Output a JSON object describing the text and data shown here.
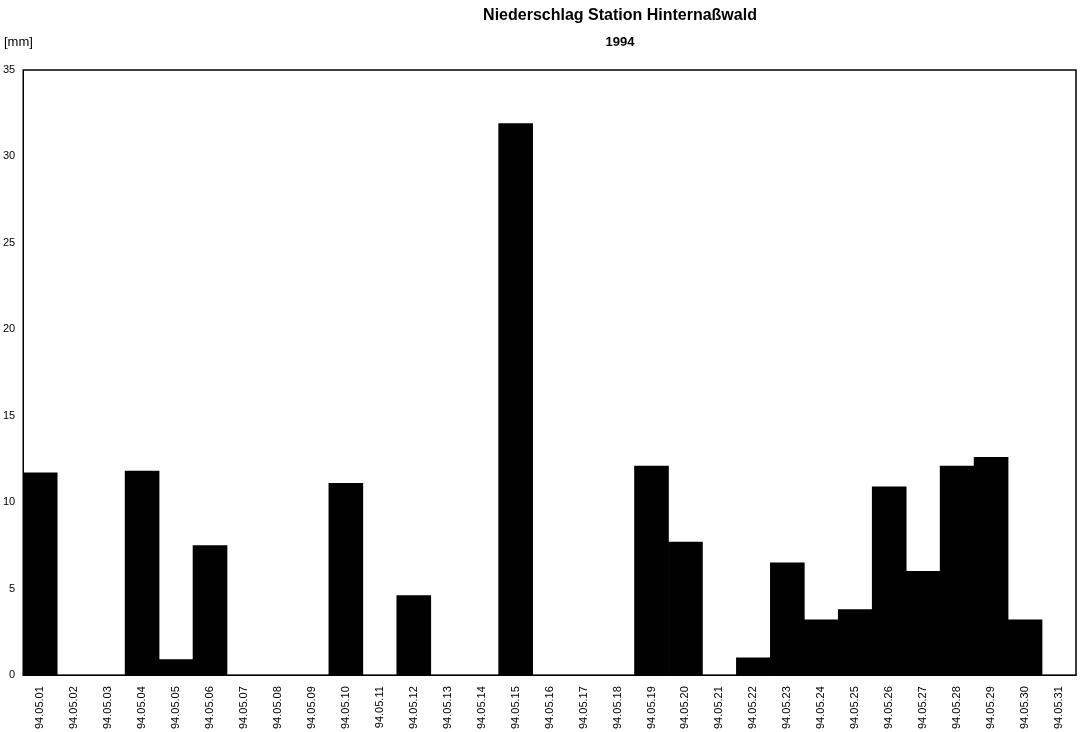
{
  "chart_data": {
    "type": "bar",
    "title": "Niederschlag Station Hinternaßwald",
    "subtitle": "1994",
    "ylabel": "[mm]",
    "categories": [
      "94.05.01",
      "94.05.02",
      "94.05.03",
      "94.05.04",
      "94.05.05",
      "94.05.06",
      "94.05.07",
      "94.05.08",
      "94.05.09",
      "94.05.10",
      "94.05.11",
      "94.05.12",
      "94.05.13",
      "94.05.14",
      "94.05.15",
      "94.05.16",
      "94.05.17",
      "94.05.18",
      "94.05.19",
      "94.05.20",
      "94.05.21",
      "94.05.22",
      "94.05.23",
      "94.05.24",
      "94.05.25",
      "94.05.26",
      "94.05.27",
      "94.05.28",
      "94.05.29",
      "94.05.30",
      "94.05.31"
    ],
    "values": [
      11.7,
      0,
      0,
      11.8,
      0.9,
      7.5,
      0,
      0,
      0,
      11.1,
      0,
      4.6,
      0,
      0,
      31.9,
      0,
      0,
      0,
      12.1,
      7.7,
      0,
      1,
      6.5,
      3.2,
      3.8,
      10.9,
      6,
      12.1,
      12.6,
      3.2,
      0
    ],
    "color": "#000000",
    "ylim": [
      0,
      35
    ],
    "yticks": [
      0,
      5,
      10,
      15,
      20,
      25,
      30,
      35
    ],
    "grid": false,
    "legend": false
  }
}
